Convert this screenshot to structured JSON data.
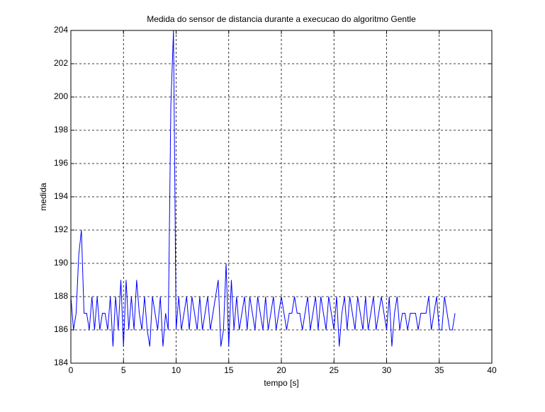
{
  "chart_data": {
    "type": "line",
    "title": "Medida do sensor de distancia durante a execucao do algoritmo Gentle",
    "xlabel": "tempo [s]",
    "ylabel": "medida",
    "x": [
      0,
      0.25,
      0.5,
      0.75,
      1,
      1.25,
      1.5,
      1.75,
      2,
      2.25,
      2.5,
      2.75,
      3,
      3.25,
      3.5,
      3.75,
      4,
      4.25,
      4.5,
      4.75,
      5,
      5.25,
      5.5,
      5.75,
      6,
      6.25,
      6.5,
      6.75,
      7,
      7.25,
      7.5,
      7.75,
      8,
      8.25,
      8.5,
      8.75,
      9,
      9.25,
      9.5,
      9.75,
      10,
      10.25,
      10.5,
      10.75,
      11,
      11.25,
      11.5,
      11.75,
      12,
      12.25,
      12.5,
      12.75,
      13,
      13.25,
      13.5,
      13.75,
      14,
      14.25,
      14.5,
      14.75,
      15,
      15.25,
      15.5,
      15.75,
      16,
      16.25,
      16.5,
      16.75,
      17,
      17.25,
      17.5,
      17.75,
      18,
      18.25,
      18.5,
      18.75,
      19,
      19.25,
      19.5,
      19.75,
      20,
      20.25,
      20.5,
      20.75,
      21,
      21.25,
      21.5,
      21.75,
      22,
      22.25,
      22.5,
      22.75,
      23,
      23.25,
      23.5,
      23.75,
      24,
      24.25,
      24.5,
      24.75,
      25,
      25.25,
      25.5,
      25.75,
      26,
      26.25,
      26.5,
      26.75,
      27,
      27.25,
      27.5,
      27.75,
      28,
      28.25,
      28.5,
      28.75,
      29,
      29.25,
      29.5,
      29.75,
      30,
      30.25,
      30.5,
      30.75,
      31,
      31.25,
      31.5,
      31.75,
      32,
      32.25,
      32.5,
      32.75,
      33,
      33.25,
      33.5,
      33.75,
      34,
      34.25,
      34.5,
      34.75,
      35,
      35.25,
      35.5,
      35.75,
      36,
      36.25,
      36.5
    ],
    "series": [
      {
        "name": "medida",
        "color": "#0000ff",
        "values": [
          188,
          186,
          187,
          190.5,
          192,
          187,
          187,
          186,
          188,
          186,
          188,
          186,
          187,
          187,
          186,
          188,
          185,
          188,
          186,
          189,
          185,
          189,
          186,
          188,
          186,
          189,
          187,
          186,
          188,
          186,
          185,
          188,
          187,
          186,
          188,
          185,
          187,
          186,
          199.5,
          204,
          186,
          188,
          186,
          187,
          188,
          186,
          188,
          187,
          186,
          188,
          186,
          187,
          188,
          186,
          187,
          188,
          189,
          185,
          186,
          190,
          185,
          189,
          186,
          188,
          186,
          187,
          188,
          186,
          188,
          187,
          186,
          188,
          187,
          186,
          188,
          186,
          187,
          188,
          186,
          187,
          188,
          187,
          186,
          187,
          187,
          188,
          187,
          187,
          186,
          187,
          188,
          186,
          187,
          188,
          186,
          188,
          187,
          186,
          188,
          187,
          186,
          188,
          185,
          187,
          188,
          186,
          188,
          187,
          186,
          188,
          187,
          186,
          188,
          186,
          187,
          188,
          186,
          187,
          188,
          187,
          186,
          188,
          185,
          187,
          188,
          186,
          187,
          187,
          186,
          187,
          187,
          187,
          186,
          187,
          187,
          187,
          188,
          186,
          187,
          188,
          186,
          186,
          188,
          187,
          186,
          186,
          187
        ]
      }
    ],
    "xlim": [
      0,
      40
    ],
    "xticks": [
      0,
      5,
      10,
      15,
      20,
      25,
      30,
      35,
      40
    ],
    "ylim": [
      184,
      204
    ],
    "yticks": [
      184,
      186,
      188,
      190,
      192,
      194,
      196,
      198,
      200,
      202,
      204
    ],
    "grid": true
  }
}
